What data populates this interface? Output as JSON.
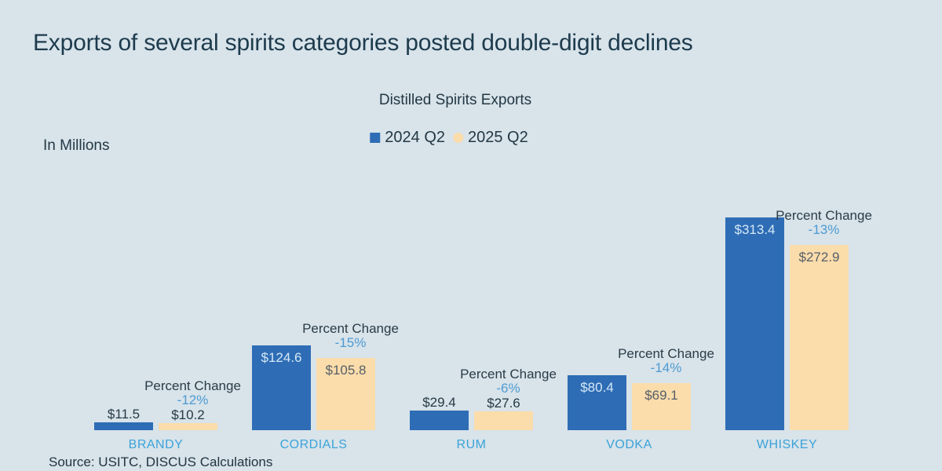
{
  "page_title": "Exports of several spirits categories posted double-digit declines",
  "source_note": "Source: USITC, DISCUS Calculations",
  "colors": {
    "background": "#d8e3ea",
    "bar_2024": "#2e6db5",
    "bar_2025": "#fbdcab",
    "title_text": "#1d3b4d",
    "category_text": "#3ba3d8",
    "percent_text": "#4e9bd1"
  },
  "chart_data": {
    "type": "bar",
    "title": "Distilled Spirits Exports",
    "ylabel": "In Millions",
    "value_prefix": "$",
    "categories": [
      "BRANDY",
      "CORDIALS",
      "RUM",
      "VODKA",
      "WHISKEY"
    ],
    "series": [
      {
        "name": "2024 Q2",
        "color": "#2e6db5",
        "values": [
          11.5,
          124.6,
          29.4,
          80.4,
          313.4
        ]
      },
      {
        "name": "2025 Q2",
        "color": "#fbdcab",
        "values": [
          10.2,
          105.8,
          27.6,
          69.1,
          272.9
        ]
      }
    ],
    "percent_change_label": "Percent Change",
    "percent_changes": [
      "-12%",
      "-15%",
      "-6%",
      "-14%",
      "-13%"
    ],
    "ylim": [
      0,
      340
    ],
    "grid": false,
    "legend_position": "top-center"
  }
}
